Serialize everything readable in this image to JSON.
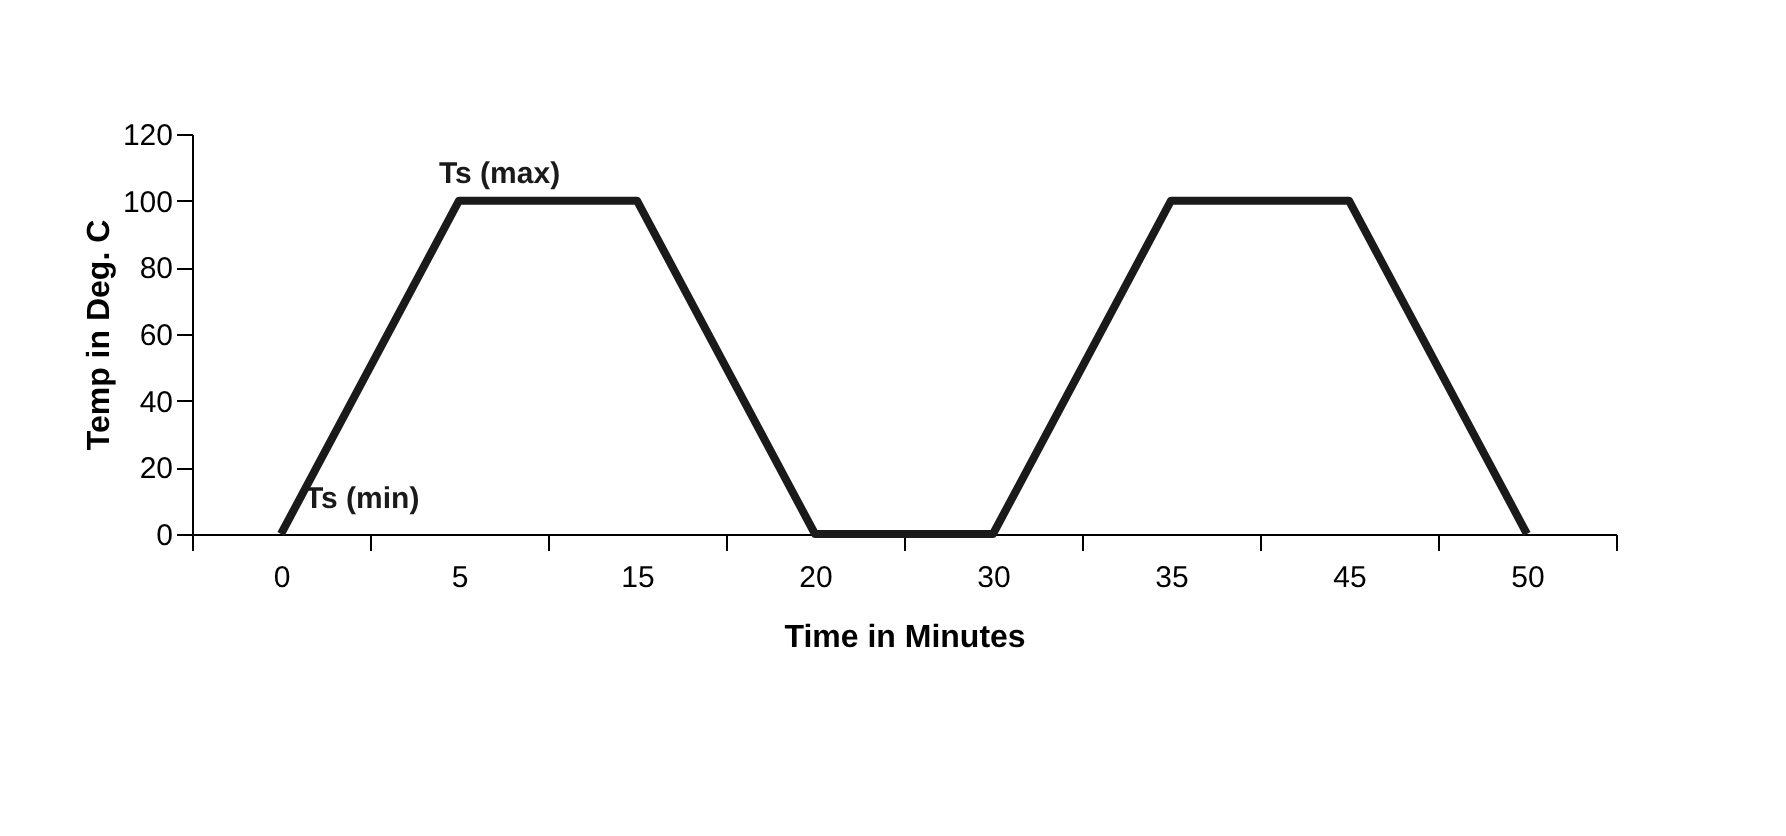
{
  "chart_data": {
    "type": "line",
    "xlabel": "Time in Minutes",
    "ylabel": "Temp in Deg. C",
    "categories": [
      "0",
      "5",
      "15",
      "20",
      "30",
      "35",
      "45",
      "50"
    ],
    "series": [
      {
        "color": "#1a1a1a",
        "values": [
          0,
          100,
          100,
          0,
          0,
          100,
          100,
          0
        ]
      }
    ],
    "ylim": [
      0,
      120
    ],
    "yticks": [
      0,
      20,
      40,
      60,
      80,
      100,
      120
    ],
    "grid": false,
    "marker": "none",
    "line_style": "solid",
    "annotations": [
      {
        "text": "Ts (max)",
        "x": "5",
        "y": 100
      },
      {
        "text": "Ts (min)",
        "x": "0",
        "y": 0
      }
    ]
  }
}
